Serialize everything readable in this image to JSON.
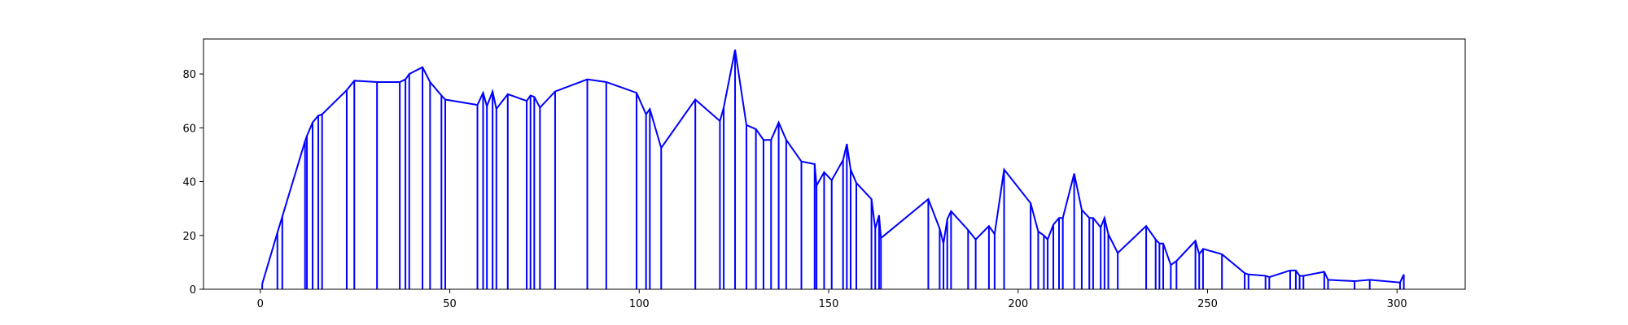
{
  "colors": {
    "series": "#0000ff",
    "axes": "#000000",
    "background": "#ffffff"
  },
  "chart_data": {
    "type": "line",
    "title": "",
    "xlabel": "",
    "ylabel": "",
    "xlim": [
      -15,
      318
    ],
    "ylim": [
      0,
      93
    ],
    "xticks": [
      0,
      50,
      100,
      150,
      200,
      250,
      300
    ],
    "yticks": [
      0,
      20,
      40,
      60,
      80
    ],
    "grid": false,
    "legend": "none",
    "series": [
      {
        "stems": true,
        "x": [
          0.5,
          4.5,
          5.8,
          11.8,
          12.3,
          13.8,
          15.3,
          16.3,
          22.8,
          24.8,
          30.8,
          36.8,
          38.3,
          39.3,
          42.8,
          44.8,
          47.8,
          48.8,
          57.3,
          58.8,
          59.8,
          61.3,
          62.3,
          65.3,
          70.3,
          71.3,
          72.3,
          73.8,
          77.8,
          86.3,
          91.3,
          99.3,
          101.8,
          102.8,
          105.8,
          114.8,
          121.3,
          122.3,
          125.3,
          128.3,
          130.8,
          132.8,
          134.8,
          136.8,
          138.8,
          142.8,
          146.3,
          146.8,
          148.8,
          150.8,
          153.8,
          154.8,
          155.8,
          157.3,
          161.3,
          162.3,
          163.3,
          163.8,
          176.3,
          179.3,
          180.3,
          181.3,
          182.3,
          186.8,
          188.8,
          192.3,
          193.8,
          196.3,
          203.3,
          205.3,
          206.8,
          207.8,
          209.3,
          210.8,
          211.8,
          214.8,
          216.8,
          218.8,
          219.8,
          221.8,
          222.8,
          223.8,
          226.3,
          233.8,
          236.3,
          237.3,
          238.3,
          240.3,
          241.8,
          246.8,
          247.8,
          248.8,
          253.8,
          259.8,
          260.8,
          265.3,
          266.3,
          271.8,
          273.3,
          274.3,
          275.3,
          280.8,
          281.8,
          288.8,
          292.8,
          300.8,
          301.8
        ],
        "y": [
          2,
          21,
          27,
          55,
          57,
          62,
          64.5,
          65,
          74,
          77.5,
          77,
          77,
          78,
          80,
          82.5,
          77,
          72,
          70.5,
          68.5,
          73,
          68,
          73.5,
          67,
          72.5,
          70,
          72,
          71.5,
          67.5,
          73.5,
          78,
          77,
          73,
          65,
          67,
          52.5,
          70.5,
          62.5,
          67.5,
          89,
          61,
          59.5,
          55.5,
          55.5,
          62,
          55.5,
          47.5,
          46.5,
          38.5,
          43.5,
          40.5,
          48,
          54,
          44.5,
          39.5,
          33.5,
          22.5,
          27.5,
          19,
          33.5,
          22.5,
          17,
          26,
          29,
          22,
          18.5,
          23.5,
          20.5,
          44.5,
          32,
          21.5,
          20,
          18.5,
          24,
          26.5,
          26.5,
          43,
          29.5,
          26.5,
          26.5,
          23,
          26.5,
          20.5,
          13.5,
          23.5,
          18.5,
          17,
          17,
          9,
          10.5,
          18,
          13,
          15,
          13,
          6,
          5.5,
          5,
          4.5,
          7,
          7,
          5,
          5,
          6.5,
          3.5,
          3,
          3.5,
          2.5,
          5.5
        ]
      }
    ]
  }
}
